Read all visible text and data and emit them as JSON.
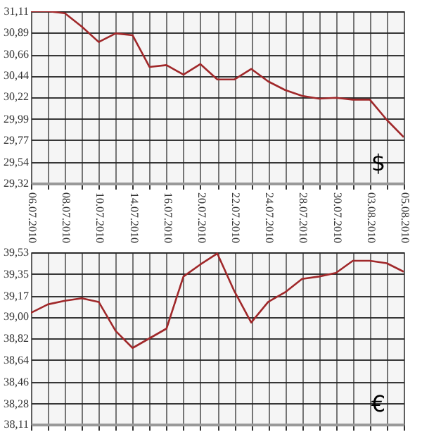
{
  "chart_data": [
    {
      "type": "line",
      "categories": [
        "06.07.2010",
        null,
        "08.07.2010",
        null,
        "10.07.2010",
        null,
        "14.07.2010",
        null,
        "16.07.2010",
        null,
        "20.07.2010",
        null,
        "22.07.2010",
        null,
        "24.07.2010",
        null,
        "28.07.2010",
        null,
        "30.07.2010",
        null,
        "03.08.2010",
        null,
        "05.08.2010"
      ],
      "series": [
        {
          "color": "#a0282a",
          "values": [
            31.11,
            31.11,
            31.09,
            30.95,
            30.79,
            30.88,
            30.86,
            30.53,
            30.55,
            30.45,
            30.56,
            30.4,
            30.4,
            30.51,
            30.38,
            30.29,
            30.23,
            30.2,
            30.21,
            30.19,
            30.19,
            29.98,
            29.8
          ]
        }
      ],
      "ylim": [
        29.32,
        31.11
      ],
      "yticks": [
        {
          "value": 29.32,
          "label": "29,32"
        },
        {
          "value": 29.54,
          "label": "29,54"
        },
        {
          "value": 29.77,
          "label": "29,77"
        },
        {
          "value": 29.99,
          "label": "29,99"
        },
        {
          "value": 30.22,
          "label": "30,22"
        },
        {
          "value": 30.44,
          "label": "30,44"
        },
        {
          "value": 30.66,
          "label": "30,66"
        },
        {
          "value": 30.89,
          "label": "30,89"
        },
        {
          "value": 31.11,
          "label": "31,11"
        }
      ],
      "grid": true,
      "annotations": [
        "$"
      ]
    },
    {
      "type": "line",
      "categories": [
        "06.07.2010",
        null,
        "08.07.2010",
        null,
        "10.07.2010",
        null,
        "14.07.2010",
        null,
        "16.07.2010",
        null,
        "20.07.2010",
        null,
        "22.07.2010",
        null,
        "24.07.2010",
        null,
        "28.07.2010",
        null,
        "30.07.2010",
        null,
        "03.08.2010",
        null,
        "05.08.2010"
      ],
      "series": [
        {
          "color": "#a0282a",
          "values": [
            39.03,
            39.1,
            39.13,
            39.15,
            39.12,
            38.88,
            38.74,
            38.82,
            38.9,
            39.33,
            39.43,
            39.52,
            39.21,
            38.95,
            39.12,
            39.2,
            39.31,
            39.33,
            39.36,
            39.46,
            39.46,
            39.44,
            39.37
          ]
        }
      ],
      "ylim": [
        38.11,
        39.53
      ],
      "yticks": [
        {
          "value": 38.11,
          "label": "38,11"
        },
        {
          "value": 38.28,
          "label": "38,28"
        },
        {
          "value": 38.46,
          "label": "38,46"
        },
        {
          "value": 38.64,
          "label": "38,64"
        },
        {
          "value": 38.82,
          "label": "38,82"
        },
        {
          "value": 39.0,
          "label": "39,00"
        },
        {
          "value": 39.17,
          "label": "39,17"
        },
        {
          "value": 39.35,
          "label": "39,35"
        },
        {
          "value": 39.53,
          "label": "39,53"
        }
      ],
      "grid": true,
      "tick_labels": "y",
      "annotations": [
        "€"
      ]
    }
  ]
}
